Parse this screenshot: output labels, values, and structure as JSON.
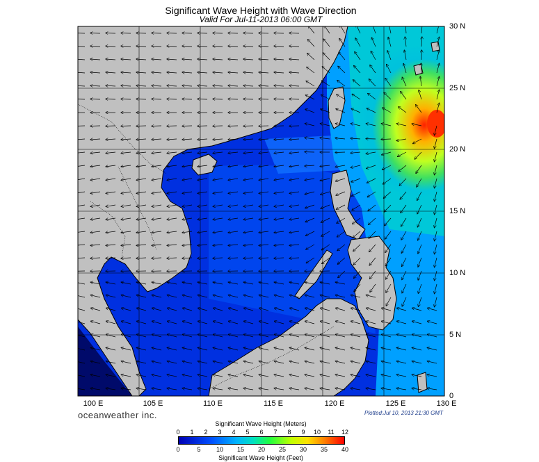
{
  "title": "Significant Wave Height with Wave Direction",
  "subtitle": "Valid For Jul-11-2013 06:00 GMT",
  "map": {
    "lon_range": [
      100,
      130
    ],
    "lat_range": [
      0,
      30
    ],
    "lat_labels": [
      "30 N",
      "25 N",
      "20 N",
      "15 N",
      "10 N",
      "5 N",
      "0"
    ],
    "lon_labels": [
      "100 E",
      "105 E",
      "110 E",
      "115 E",
      "120 E",
      "125 E",
      "130 E"
    ],
    "land_color": "#c0c0c0",
    "sea_base_color": "#0030e0",
    "max_wave_region": "east of Taiwan near 22 N 129 E"
  },
  "branding": "oceanweather inc.",
  "plotted": "Plotted:Jul 10, 2013 21:30 GMT",
  "colorbar": {
    "title_top": "Significant Wave Height (Meters)",
    "title_bottom": "Significant Wave Height (Feet)",
    "meters": [
      "0",
      "1",
      "2",
      "3",
      "4",
      "5",
      "6",
      "7",
      "8",
      "9",
      "10",
      "11",
      "12"
    ],
    "feet": [
      "0",
      "5",
      "10",
      "15",
      "20",
      "25",
      "30",
      "35",
      "40"
    ]
  }
}
